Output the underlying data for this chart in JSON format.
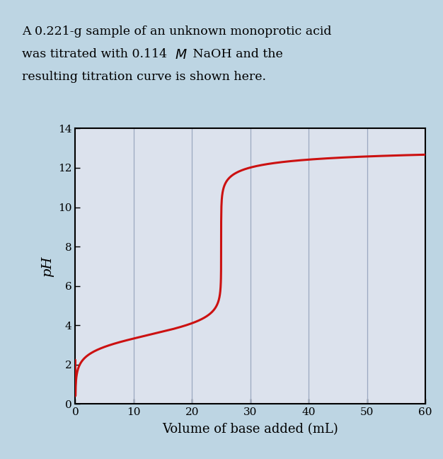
{
  "title_line1": "A 0.221-g sample of an unknown monoprotic acid",
  "title_line2_pre": "was titrated with 0.114  ",
  "title_line2_post": " NaOH and the",
  "title_line3": "resulting titration curve is shown here.",
  "xlabel": "Volume of base added (mL)",
  "ylabel": "pH",
  "xlim": [
    0,
    60
  ],
  "ylim": [
    0,
    14
  ],
  "xticks": [
    0,
    10,
    20,
    30,
    40,
    50,
    60
  ],
  "yticks": [
    0,
    2,
    4,
    6,
    8,
    10,
    12,
    14
  ],
  "plot_bg_color": "#dce2ed",
  "outer_bg_color": "#bdd5e3",
  "curve_color": "#cc1111",
  "grid_color": "#9ba8c0",
  "curve_linewidth": 2.2,
  "equivalence_vol": 25.0,
  "start_pH": 1.88,
  "end_pH": 12.62,
  "pKa": 3.5,
  "title_fontsize": 12.5,
  "axis_label_fontsize": 13,
  "tick_fontsize": 11
}
